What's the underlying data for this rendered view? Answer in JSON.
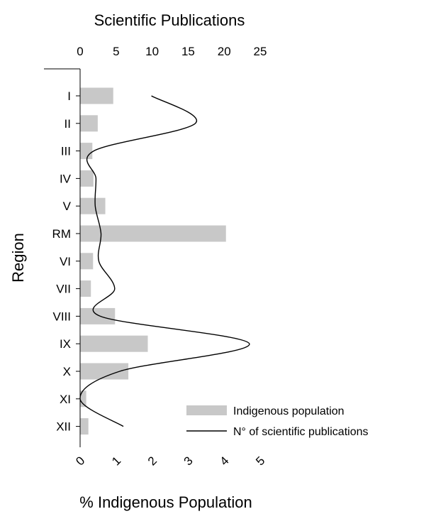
{
  "chart_data": {
    "type": "bar",
    "orientation": "horizontal",
    "title": "Scientific Publications",
    "ylabel": "Region",
    "xlabel": "% Indigenous Population",
    "categories": [
      "I",
      "II",
      "III",
      "IV",
      "V",
      "RM",
      "VI",
      "VII",
      "VIII",
      "IX",
      "X",
      "XI",
      "XII"
    ],
    "series": [
      {
        "name": "Indigenous population",
        "axis": "bottom",
        "mark": "bar",
        "color": "#c8c8c8",
        "values": [
          0.92,
          0.49,
          0.34,
          0.37,
          0.7,
          4.05,
          0.36,
          0.3,
          0.97,
          1.88,
          1.34,
          0.17,
          0.23
        ]
      },
      {
        "name": "N° of scientific publications",
        "axis": "top",
        "mark": "line",
        "color": "#000000",
        "values": [
          9.9,
          16.0,
          1.9,
          2.2,
          2.1,
          2.9,
          2.6,
          4.8,
          2.8,
          23.5,
          5.5,
          0.0,
          6.0
        ]
      }
    ],
    "bottom_axis": {
      "range": [
        0,
        5
      ],
      "ticks": [
        "0",
        "1",
        "2",
        "3",
        "4",
        "5"
      ]
    },
    "top_axis": {
      "range": [
        0,
        25
      ],
      "ticks": [
        "0",
        "5",
        "10",
        "15",
        "20",
        "25"
      ]
    },
    "legend_position": "bottom-right",
    "grid": false
  }
}
